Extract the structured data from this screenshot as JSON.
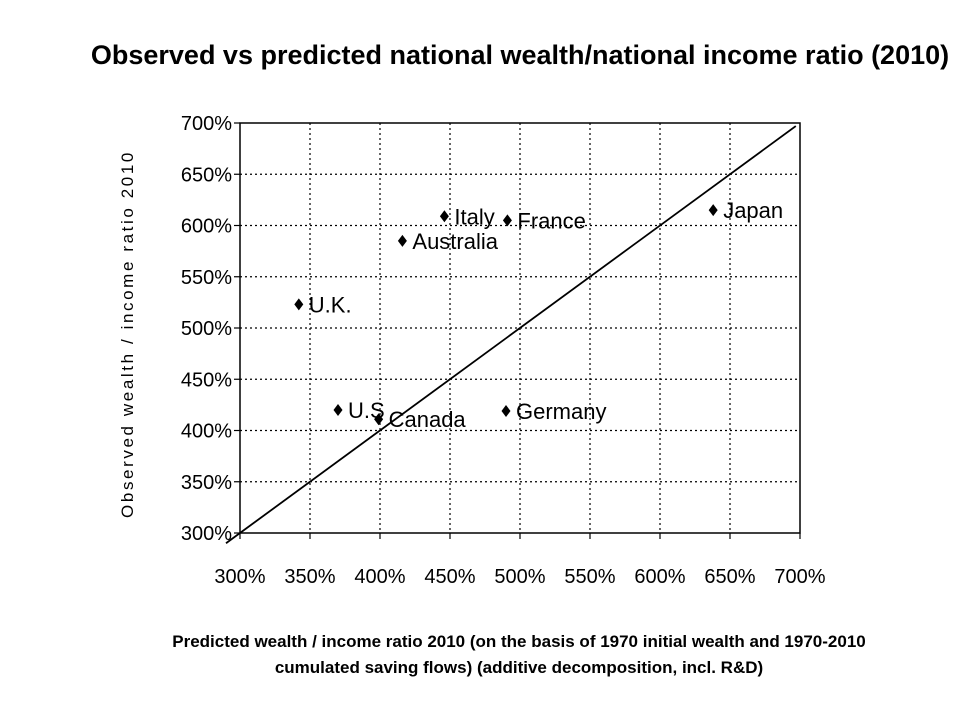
{
  "chart_data": {
    "type": "scatter",
    "title": "Observed vs predicted national wealth/national income ratio (2010)",
    "xlabel": [
      "Predicted wealth / income ratio 2010 (on the basis of 1970 initial wealth and 1970-2010",
      "cumulated saving flows) (additive decomposition, incl. R&D)"
    ],
    "ylabel": "Observed wealth / income ratio 2010",
    "xlim": [
      300,
      700
    ],
    "ylim": [
      300,
      700
    ],
    "unit": "%",
    "grid": true,
    "x_ticks": [
      300,
      350,
      400,
      450,
      500,
      550,
      600,
      650,
      700
    ],
    "y_ticks": [
      300,
      350,
      400,
      450,
      500,
      550,
      600,
      650,
      700
    ],
    "reference_line": {
      "style": "solid",
      "x": [
        290,
        697
      ],
      "y": [
        290,
        697
      ]
    },
    "points": [
      {
        "label": "U.K.",
        "x": 342,
        "y": 523
      },
      {
        "label": "U.S",
        "x": 370,
        "y": 420
      },
      {
        "label": "Canada",
        "x": 399,
        "y": 411
      },
      {
        "label": "Australia",
        "x": 416,
        "y": 585
      },
      {
        "label": "Italy",
        "x": 446,
        "y": 609
      },
      {
        "label": "France",
        "x": 491,
        "y": 605
      },
      {
        "label": "Germany",
        "x": 490,
        "y": 419
      },
      {
        "label": "Japan",
        "x": 638,
        "y": 615
      }
    ]
  }
}
